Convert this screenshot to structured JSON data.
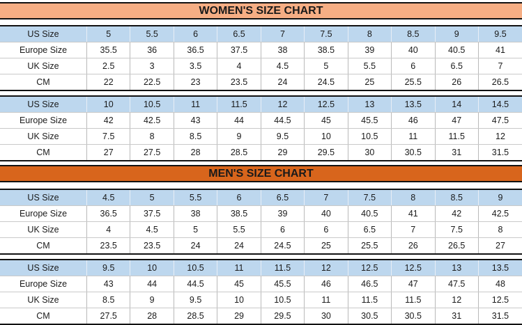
{
  "women": {
    "title": "WOMEN'S SIZE CHART",
    "tables": [
      {
        "rows": [
          {
            "label": "US Size",
            "values": [
              "5",
              "5.5",
              "6",
              "6.5",
              "7",
              "7.5",
              "8",
              "8.5",
              "9",
              "9.5"
            ]
          },
          {
            "label": "Europe Size",
            "values": [
              "35.5",
              "36",
              "36.5",
              "37.5",
              "38",
              "38.5",
              "39",
              "40",
              "40.5",
              "41"
            ]
          },
          {
            "label": "UK Size",
            "values": [
              "2.5",
              "3",
              "3.5",
              "4",
              "4.5",
              "5",
              "5.5",
              "6",
              "6.5",
              "7"
            ]
          },
          {
            "label": "CM",
            "values": [
              "22",
              "22.5",
              "23",
              "23.5",
              "24",
              "24.5",
              "25",
              "25.5",
              "26",
              "26.5"
            ]
          }
        ]
      },
      {
        "rows": [
          {
            "label": "US Size",
            "values": [
              "10",
              "10.5",
              "11",
              "11.5",
              "12",
              "12.5",
              "13",
              "13.5",
              "14",
              "14.5"
            ]
          },
          {
            "label": "Europe Size",
            "values": [
              "42",
              "42.5",
              "43",
              "44",
              "44.5",
              "45",
              "45.5",
              "46",
              "47",
              "47.5"
            ]
          },
          {
            "label": "UK Size",
            "values": [
              "7.5",
              "8",
              "8.5",
              "9",
              "9.5",
              "10",
              "10.5",
              "11",
              "11.5",
              "12"
            ]
          },
          {
            "label": "CM",
            "values": [
              "27",
              "27.5",
              "28",
              "28.5",
              "29",
              "29.5",
              "30",
              "30.5",
              "31",
              "31.5"
            ]
          }
        ]
      }
    ]
  },
  "men": {
    "title": "MEN'S SIZE CHART",
    "tables": [
      {
        "rows": [
          {
            "label": "US Size",
            "values": [
              "4.5",
              "5",
              "5.5",
              "6",
              "6.5",
              "7",
              "7.5",
              "8",
              "8.5",
              "9"
            ]
          },
          {
            "label": "Europe Size",
            "values": [
              "36.5",
              "37.5",
              "38",
              "38.5",
              "39",
              "40",
              "40.5",
              "41",
              "42",
              "42.5"
            ]
          },
          {
            "label": "UK Size",
            "values": [
              "4",
              "4.5",
              "5",
              "5.5",
              "6",
              "6",
              "6.5",
              "7",
              "7.5",
              "8"
            ]
          },
          {
            "label": "CM",
            "values": [
              "23.5",
              "23.5",
              "24",
              "24",
              "24.5",
              "25",
              "25.5",
              "26",
              "26.5",
              "27"
            ]
          }
        ]
      },
      {
        "rows": [
          {
            "label": "US Size",
            "values": [
              "9.5",
              "10",
              "10.5",
              "11",
              "11.5",
              "12",
              "12.5",
              "12.5",
              "13",
              "13.5"
            ]
          },
          {
            "label": "Europe Size",
            "values": [
              "43",
              "44",
              "44.5",
              "45",
              "45.5",
              "46",
              "46.5",
              "47",
              "47.5",
              "48"
            ]
          },
          {
            "label": "UK Size",
            "values": [
              "8.5",
              "9",
              "9.5",
              "10",
              "10.5",
              "11",
              "11.5",
              "11.5",
              "12",
              "12.5"
            ]
          },
          {
            "label": "CM",
            "values": [
              "27.5",
              "28",
              "28.5",
              "29",
              "29.5",
              "30",
              "30.5",
              "30.5",
              "31",
              "31.5"
            ]
          }
        ]
      }
    ]
  },
  "colors": {
    "women_banner": "#f6ae84",
    "men_banner": "#d8651c",
    "header_row": "#bdd7ee"
  }
}
